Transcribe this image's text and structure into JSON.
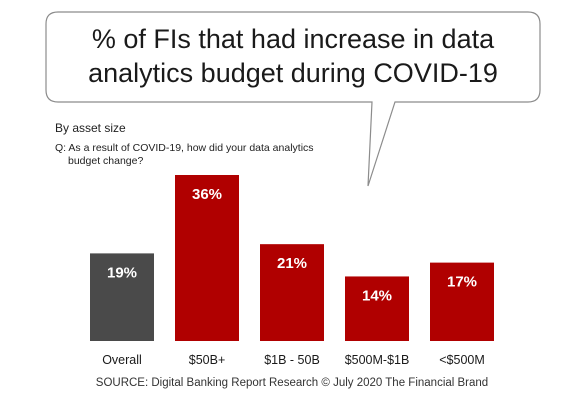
{
  "chart_data": {
    "type": "bar",
    "title": "% of FIs that had increase in data analytics budget during COVID-19",
    "title_lines": [
      "% of FIs that had increase in data",
      "analytics budget during COVID-19"
    ],
    "subtitle": "By asset size",
    "question_lines": [
      "Q: As a result of COVID-19, how did your data analytics",
      "budget change?"
    ],
    "categories": [
      "Overall",
      "$50B+",
      "$1B - 50B",
      "$500M-$1B",
      "<$500M"
    ],
    "values": [
      19,
      36,
      21,
      14,
      17
    ],
    "value_labels": [
      "19%",
      "36%",
      "21%",
      "14%",
      "17%"
    ],
    "unit": "%",
    "colors": [
      "#4a4a4a",
      "#b00000",
      "#b00000",
      "#b00000",
      "#b00000"
    ],
    "xlabel": "",
    "ylabel": "",
    "ylim": [
      0,
      36
    ],
    "grid": false,
    "source": "SOURCE: Digital Banking Report Research © July 2020 The Financial Brand"
  }
}
